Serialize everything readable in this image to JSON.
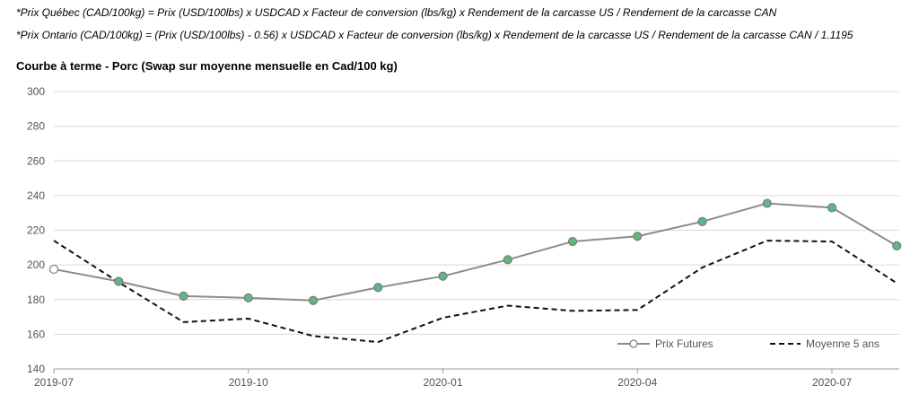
{
  "notes": {
    "quebec": "*Prix Québec (CAD/100kg) = Prix (USD/100lbs) x USDCAD x Facteur de conversion (lbs/kg) x Rendement de la carcasse US / Rendement de la carcasse CAN",
    "ontario": "*Prix Ontario (CAD/100kg) = (Prix (USD/100lbs) - 0.56) x USDCAD x Facteur de conversion (lbs/kg) x Rendement de la carcasse US / Rendement de la carcasse CAN / 1.1195"
  },
  "chart_data": {
    "type": "line",
    "title": "Courbe à terme - Porc (Swap sur moyenne mensuelle en Cad/100 kg)",
    "xlabel": "",
    "ylabel": "",
    "ylim": [
      140,
      300
    ],
    "yticks": [
      140,
      160,
      180,
      200,
      220,
      240,
      260,
      280,
      300
    ],
    "grid": true,
    "legend_position": "bottom-right",
    "x": [
      "2019-07",
      "2019-08",
      "2019-09",
      "2019-10",
      "2019-11",
      "2019-12",
      "2020-01",
      "2020-02",
      "2020-03",
      "2020-04",
      "2020-05",
      "2020-06",
      "2020-07",
      "2020-08"
    ],
    "x_tick_labels": [
      "2019-07",
      "2019-10",
      "2020-01",
      "2020-04",
      "2020-07"
    ],
    "series": [
      {
        "name": "Prix Futures",
        "color": "#8c8c8c",
        "marker_color": "#5fb784",
        "style": "solid",
        "values": [
          197.5,
          190.5,
          182,
          181,
          179.5,
          187,
          193.5,
          203,
          213.5,
          216.5,
          225,
          235.5,
          233,
          211
        ]
      },
      {
        "name": "Moyenne 5 ans",
        "color": "#111111",
        "style": "dashed",
        "values": [
          214,
          190,
          167,
          169,
          159,
          155.5,
          169.5,
          176.5,
          173.5,
          174,
          198.5,
          214,
          213.5,
          189.5
        ]
      }
    ]
  }
}
